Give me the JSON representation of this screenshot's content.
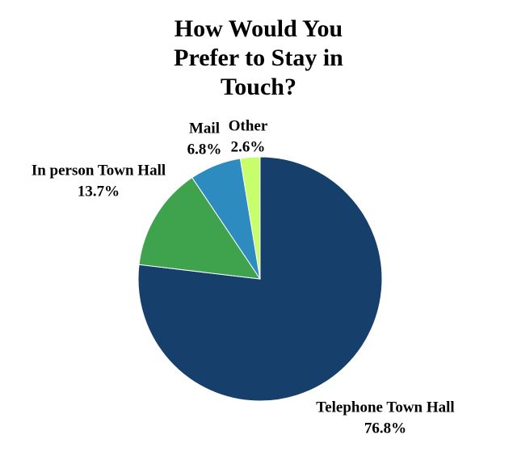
{
  "chart_data": {
    "type": "pie",
    "title": "How Would You Prefer to Stay in Touch?",
    "categories": [
      "Telephone Town Hall",
      "In person Town Hall",
      "Mail",
      "Other"
    ],
    "values": [
      76.8,
      13.7,
      6.8,
      2.6
    ],
    "value_labels": [
      "76.8%",
      "13.7%",
      "6.8%",
      "2.6%"
    ],
    "colors": [
      "#173f6b",
      "#3fa34d",
      "#2e8bc0",
      "#c6ff6b"
    ]
  }
}
